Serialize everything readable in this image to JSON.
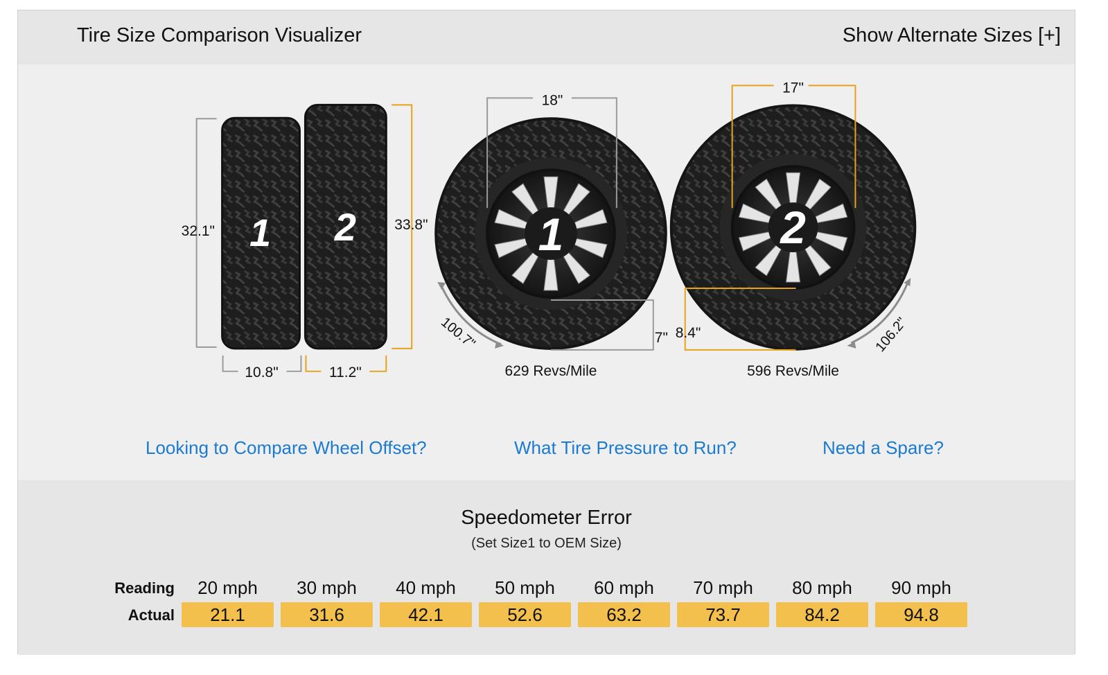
{
  "header": {
    "title": "Tire Size Comparison Visualizer",
    "alternate_link": "Show Alternate Sizes [+]"
  },
  "colors": {
    "accent": "#f3bf4d",
    "orange_line": "#e8a21a",
    "link": "#1a7bd1",
    "gray_line": "#9a9a9a"
  },
  "tires": {
    "tire1": {
      "label": "1",
      "height": "32.1\"",
      "width": "10.8\"",
      "wheel": "18\"",
      "sidewall": "7\"",
      "circumference": "100.7\"",
      "revs": "629 Revs/Mile"
    },
    "tire2": {
      "label": "2",
      "height": "33.8\"",
      "width": "11.2\"",
      "wheel": "17\"",
      "sidewall": "8.4\"",
      "circumference": "106.2\"",
      "revs": "596 Revs/Mile"
    }
  },
  "links": {
    "offset": "Looking to Compare Wheel Offset?",
    "pressure": "What Tire Pressure to Run?",
    "spare": "Need a Spare?"
  },
  "speedometer": {
    "title": "Speedometer Error",
    "subtitle": "(Set Size1 to OEM Size)",
    "reading_label": "Reading",
    "actual_label": "Actual",
    "readings": [
      "20 mph",
      "30 mph",
      "40 mph",
      "50 mph",
      "60 mph",
      "70 mph",
      "80 mph",
      "90 mph"
    ],
    "actuals": [
      "21.1",
      "31.6",
      "42.1",
      "52.6",
      "63.2",
      "73.7",
      "84.2",
      "94.8"
    ]
  }
}
